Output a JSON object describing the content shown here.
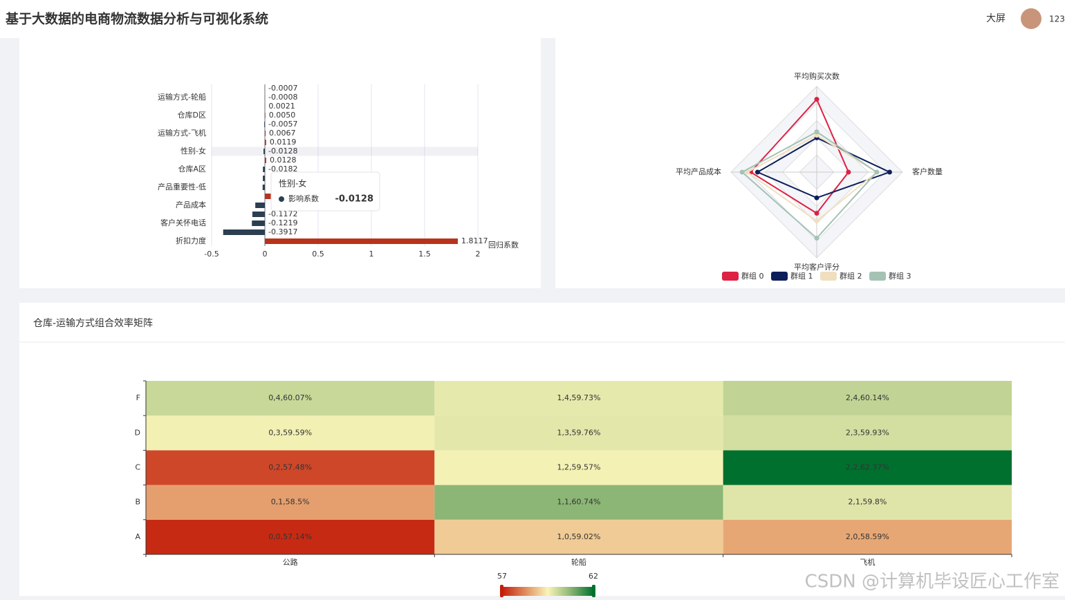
{
  "header": {
    "title": "基于大数据的电商物流数据分析与可视化系统",
    "nav": "大屏",
    "user": "123"
  },
  "watermark": "CSDN @计算机毕设匠心工作室",
  "chart_data": [
    {
      "type": "hbar",
      "categories": [
        "折扣力度",
        null,
        "客户关怀电话",
        null,
        "产品成本",
        null,
        "产品重要性-低",
        null,
        "仓库A区",
        null,
        "性别-女",
        null,
        "运输方式-飞机",
        null,
        "仓库D区",
        null,
        "运输方式-轮船",
        null
      ],
      "series": [
        {
          "name": "影响系数",
          "values": [
            1.8117,
            -0.3917,
            -0.1219,
            -0.1172,
            -0.09,
            0.06,
            -0.021,
            -0.019,
            -0.0182,
            0.0128,
            -0.0128,
            0.0119,
            0.0067,
            -0.0057,
            0.005,
            0.0021,
            -0.0008,
            -0.0007
          ],
          "value_labels": [
            "1.8117",
            "-0.3917",
            "-0.1219",
            "-0.1172",
            null,
            null,
            null,
            null,
            "-0.0182",
            "0.0128",
            "-0.0128",
            "0.0119",
            "0.0067",
            "-0.0057",
            "0.0050",
            "0.0021",
            "-0.0008",
            "-0.0007"
          ]
        }
      ],
      "positive_color": "#b8331c",
      "negative_color": "#2b3f50",
      "xlim": [
        -0.5,
        2
      ],
      "xticks": [
        -0.5,
        0,
        0.5,
        1,
        1.5,
        2
      ],
      "xlabel": "回归系数",
      "grid": true
    },
    {
      "type": "radar",
      "indicators": [
        "平均购买次数",
        "平均产品成本",
        "平均客户评分",
        "客户数量"
      ],
      "rlim": [
        0,
        1
      ],
      "series": [
        {
          "name": "群组 0",
          "color": "#dd2244",
          "values": [
            0.85,
            0.77,
            0.48,
            0.37
          ]
        },
        {
          "name": "群组 1",
          "color": "#0d1e5a",
          "values": [
            0.4,
            0.69,
            0.3,
            0.85
          ]
        },
        {
          "name": "群组 2",
          "color": "#f0dfbf",
          "values": [
            0.43,
            0.81,
            0.57,
            0.7
          ]
        },
        {
          "name": "群组 3",
          "color": "#a5c2b5",
          "values": [
            0.47,
            0.87,
            0.77,
            0.7
          ]
        }
      ]
    },
    {
      "type": "heatmap",
      "title": "仓库-运输方式组合效率矩阵",
      "x_categories": [
        "公路",
        "轮船",
        "飞机"
      ],
      "y_categories": [
        "A",
        "B",
        "C",
        "D",
        "F"
      ],
      "values": [
        [
          57.14,
          59.02,
          58.59
        ],
        [
          58.5,
          60.74,
          59.8
        ],
        [
          57.48,
          59.57,
          62.37
        ],
        [
          59.59,
          59.76,
          59.93
        ],
        [
          60.07,
          59.73,
          60.14
        ]
      ],
      "value_labels": [
        [
          "0,0,57.14%",
          "1,0,59.02%",
          "2,0,58.59%"
        ],
        [
          "0,1,58.5%",
          "1,1,60.74%",
          "2,1,59.8%"
        ],
        [
          "0,2,57.48%",
          "1,2,59.57%",
          "2,2,62.37%"
        ],
        [
          "0,3,59.59%",
          "1,3,59.76%",
          "2,3,59.93%"
        ],
        [
          "0,4,60.07%",
          "1,4,59.73%",
          "2,4,60.14%"
        ]
      ],
      "visual_map": {
        "min": 57,
        "max": 62,
        "colors": [
          "#c41e0a",
          "#e08a5c",
          "#faf4b8",
          "#8ab674",
          "#00702f"
        ]
      }
    }
  ]
}
